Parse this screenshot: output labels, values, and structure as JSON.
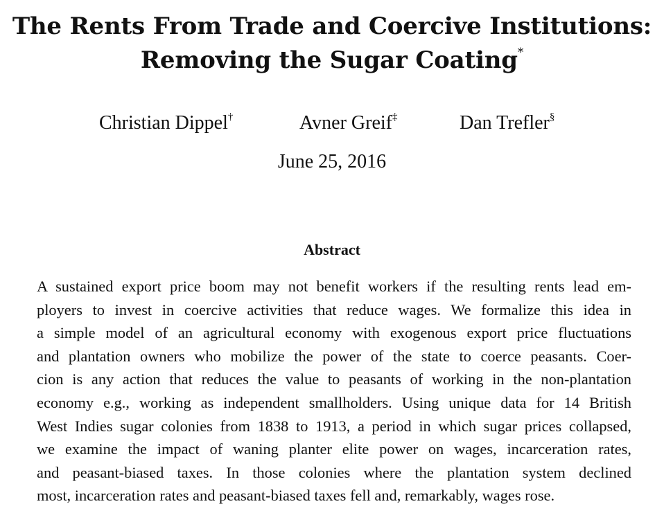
{
  "paper": {
    "title_line1": "The Rents From Trade and Coercive Institutions:",
    "title_line2": "Removing the Sugar Coating",
    "title_mark": "*",
    "authors": [
      {
        "name": "Christian Dippel",
        "mark": "†"
      },
      {
        "name": "Avner Greif",
        "mark": "‡"
      },
      {
        "name": "Dan Trefler",
        "mark": "§"
      }
    ],
    "date": "June 25, 2016",
    "abstract": {
      "heading": "Abstract",
      "lines": [
        "A sustained export price boom may not benefit workers if the resulting rents lead em-",
        "ployers to invest in coercive activities that reduce wages.  We formalize this idea in",
        "a simple model of an agricultural economy with exogenous export price fluctuations",
        "and plantation owners who mobilize the power of the state to coerce peasants.  Coer-",
        "cion is any action that reduces the value to peasants of working in the non-plantation",
        "economy e.g., working as independent smallholders.  Using unique data for 14 British",
        "West Indies sugar colonies from 1838 to 1913, a period in which sugar prices collapsed,",
        "we examine the impact of waning planter elite power on wages, incarceration rates,",
        "and peasant-biased taxes.  In those colonies where the plantation system declined",
        "most, incarceration rates and peasant-biased taxes fell and, remarkably, wages rose."
      ]
    }
  }
}
